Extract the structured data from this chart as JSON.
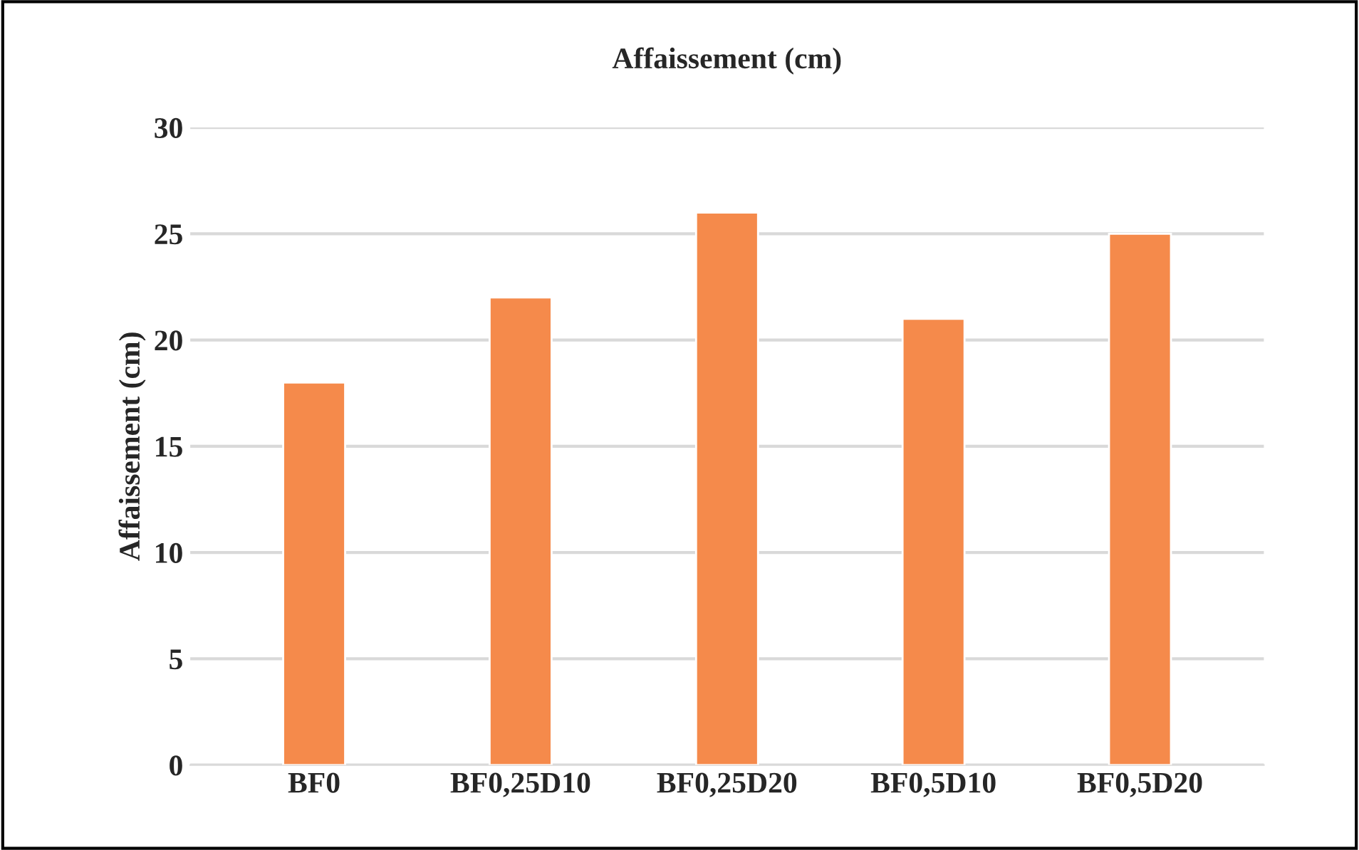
{
  "chart_data": {
    "type": "bar",
    "title": "Affaissement (cm)",
    "ylabel": "Affaissement (cm)",
    "categories": [
      "BF0",
      "BF0,25D10",
      "BF0,25D20",
      "BF0,5D10",
      "BF0,5D20"
    ],
    "values": [
      18,
      22,
      26,
      21,
      25
    ],
    "color": "#f58a4b",
    "ylim": [
      0,
      30
    ],
    "yticks": [
      0,
      5,
      10,
      15,
      20,
      25,
      30
    ],
    "grid": "y",
    "legend": false
  }
}
